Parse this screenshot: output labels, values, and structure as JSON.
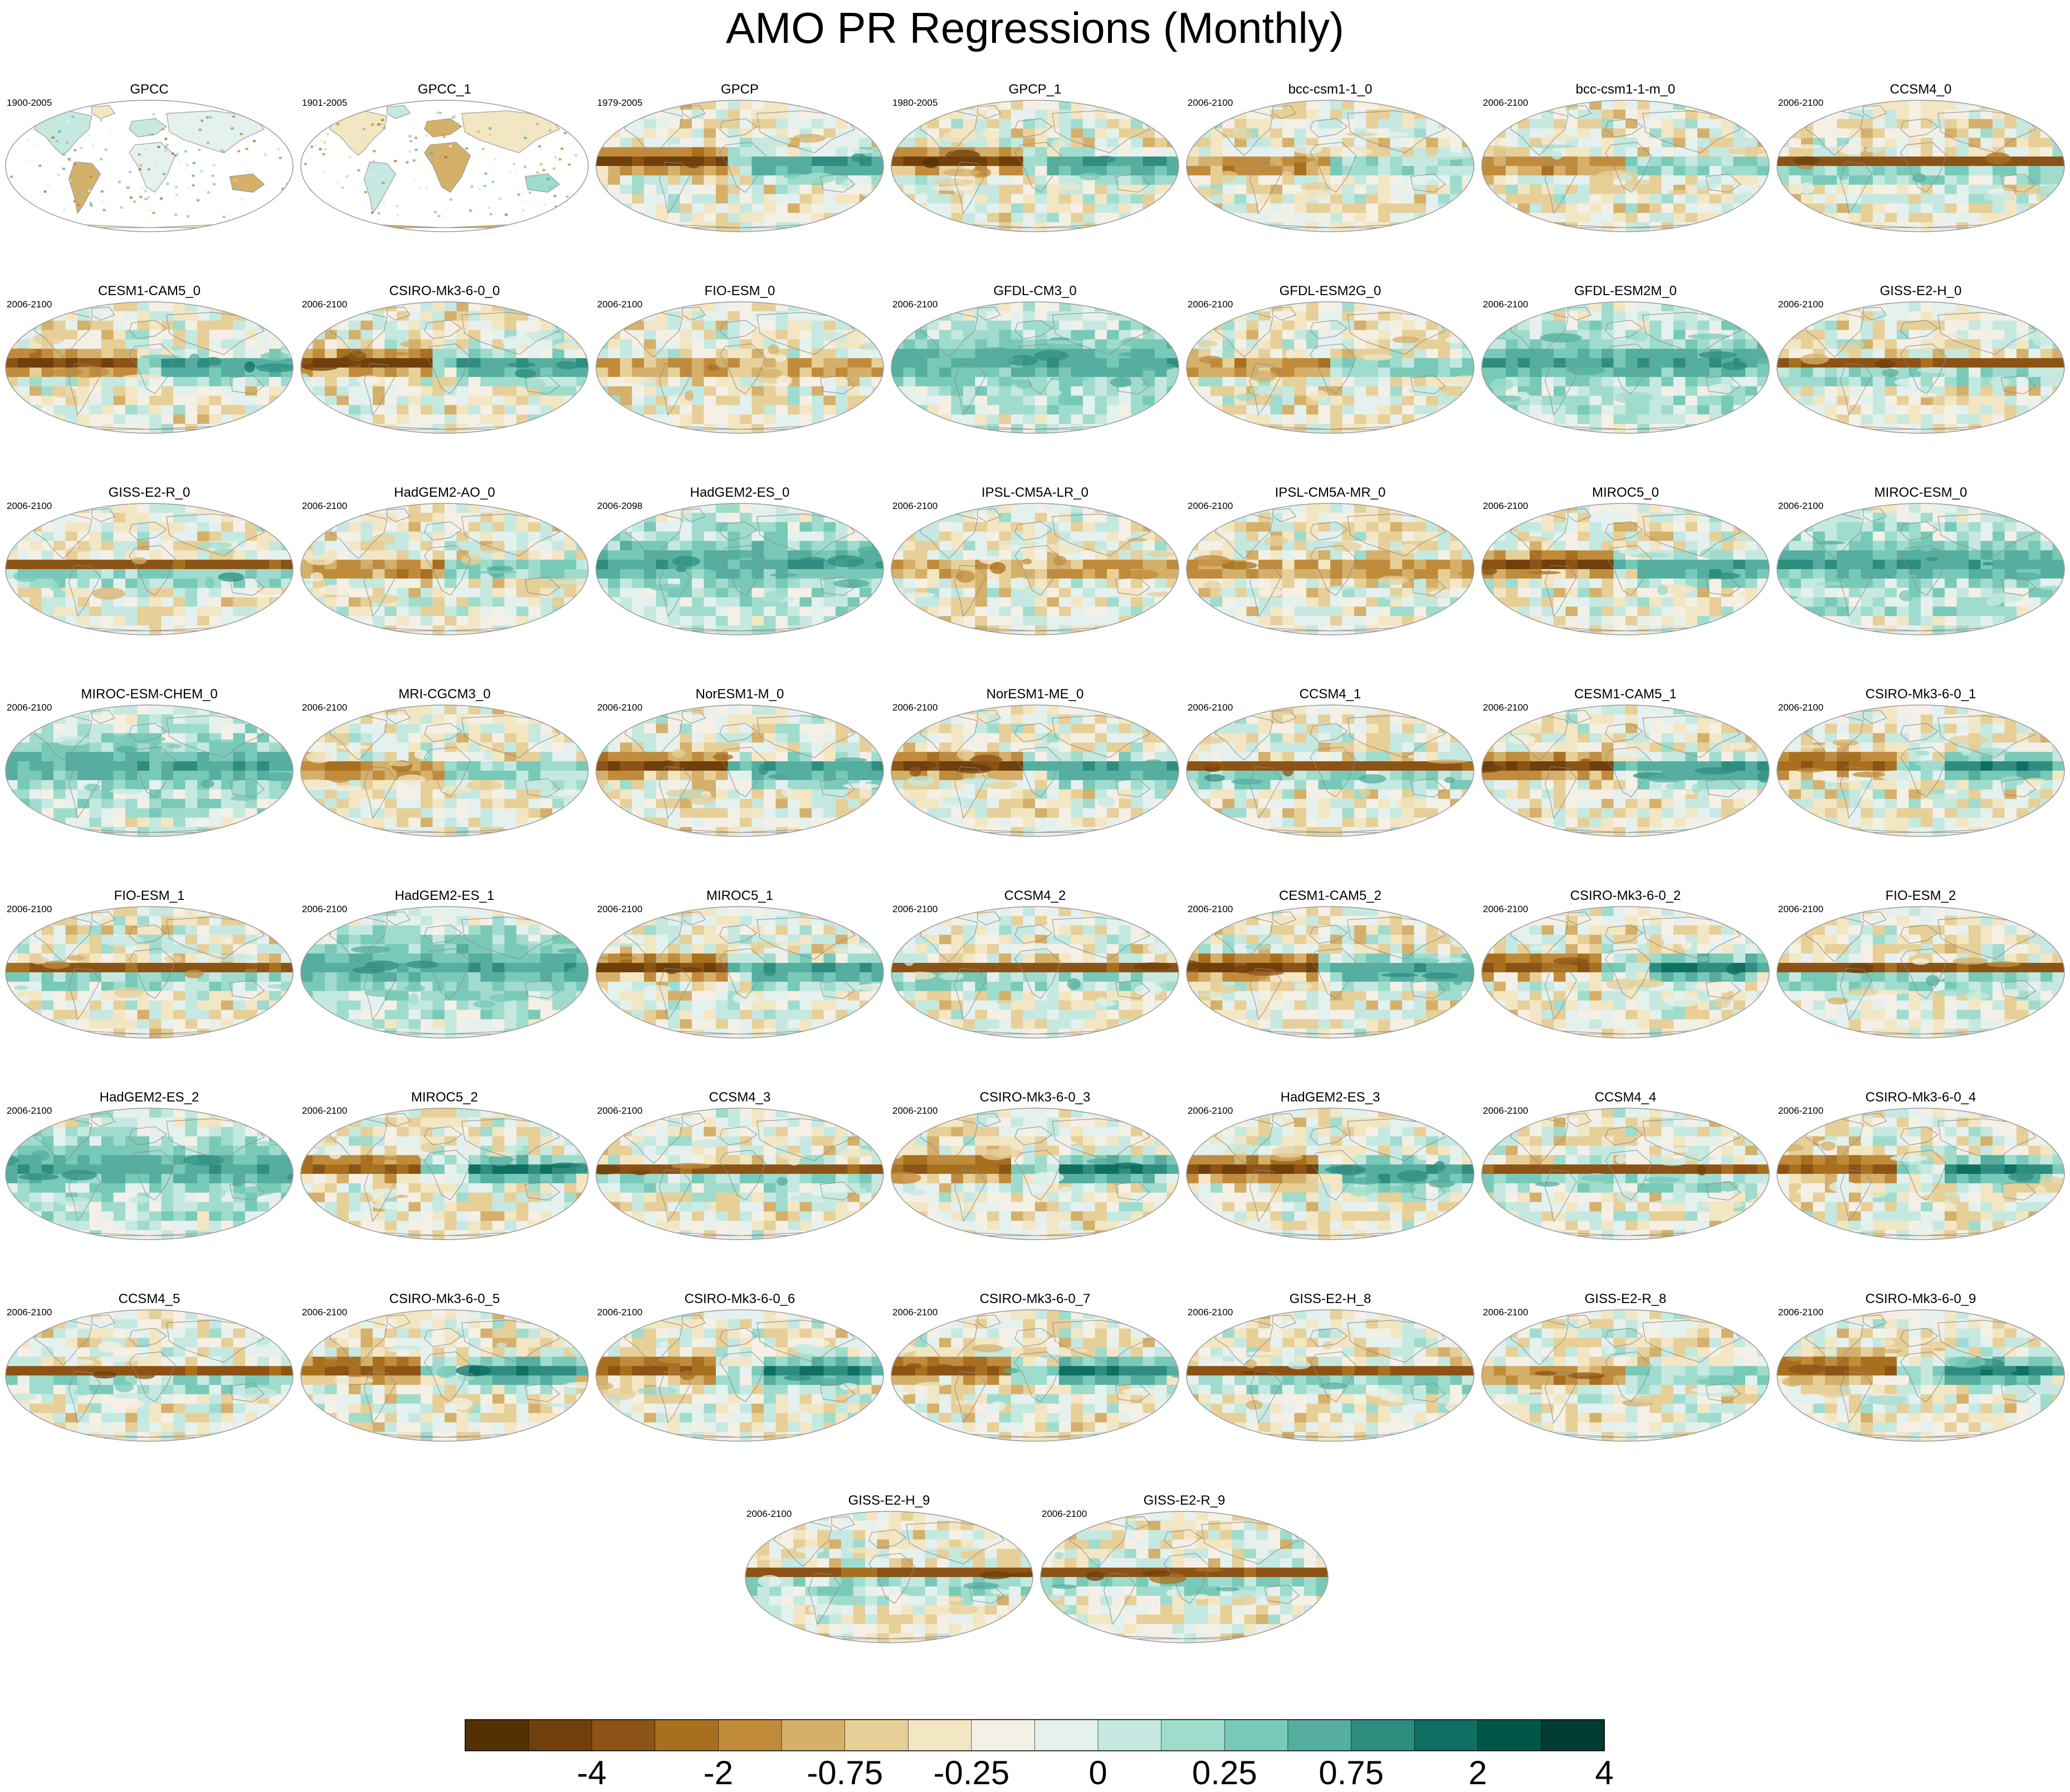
{
  "title": "AMO PR Regressions (Monthly)",
  "chart_data": {
    "type": "heatmap",
    "title": "AMO PR Regressions (Monthly)",
    "projection": "robinson global maps",
    "palette": "brown-to-teal diverging",
    "panels": [
      {
        "name": "GPCC",
        "period": "1900-2005",
        "coverage": "land",
        "pattern": "obs"
      },
      {
        "name": "GPCC_1",
        "period": "1901-2005",
        "coverage": "land",
        "pattern": "obs"
      },
      {
        "name": "GPCP",
        "period": "1979-2005",
        "coverage": "global",
        "pattern": "west"
      },
      {
        "name": "GPCP_1",
        "period": "1980-2005",
        "coverage": "global",
        "pattern": "west"
      },
      {
        "name": "bcc-csm1-1_0",
        "period": "2006-2100",
        "coverage": "global",
        "pattern": "mixed"
      },
      {
        "name": "bcc-csm1-1-m_0",
        "period": "2006-2100",
        "coverage": "global",
        "pattern": "mixed"
      },
      {
        "name": "CCSM4_0",
        "period": "2006-2100",
        "coverage": "global",
        "pattern": "band"
      },
      {
        "name": "CESM1-CAM5_0",
        "period": "2006-2100",
        "coverage": "global",
        "pattern": "west"
      },
      {
        "name": "CSIRO-Mk3-6-0_0",
        "period": "2006-2100",
        "coverage": "global",
        "pattern": "west"
      },
      {
        "name": "FIO-ESM_0",
        "period": "2006-2100",
        "coverage": "global",
        "pattern": "weak"
      },
      {
        "name": "GFDL-CM3_0",
        "period": "2006-2100",
        "coverage": "global",
        "pattern": "teal"
      },
      {
        "name": "GFDL-ESM2G_0",
        "period": "2006-2100",
        "coverage": "global",
        "pattern": "mixed"
      },
      {
        "name": "GFDL-ESM2M_0",
        "period": "2006-2100",
        "coverage": "global",
        "pattern": "teal"
      },
      {
        "name": "GISS-E2-H_0",
        "period": "2006-2100",
        "coverage": "global",
        "pattern": "band"
      },
      {
        "name": "GISS-E2-R_0",
        "period": "2006-2100",
        "coverage": "global",
        "pattern": "band"
      },
      {
        "name": "HadGEM2-AO_0",
        "period": "2006-2100",
        "coverage": "global",
        "pattern": "mixed"
      },
      {
        "name": "HadGEM2-ES_0",
        "period": "2006-2098",
        "coverage": "global",
        "pattern": "teal"
      },
      {
        "name": "IPSL-CM5A-LR_0",
        "period": "2006-2100",
        "coverage": "global",
        "pattern": "weak"
      },
      {
        "name": "IPSL-CM5A-MR_0",
        "period": "2006-2100",
        "coverage": "global",
        "pattern": "weak"
      },
      {
        "name": "MIROC5_0",
        "period": "2006-2100",
        "coverage": "global",
        "pattern": "west"
      },
      {
        "name": "MIROC-ESM_0",
        "period": "2006-2100",
        "coverage": "global",
        "pattern": "teal"
      },
      {
        "name": "MIROC-ESM-CHEM_0",
        "period": "2006-2100",
        "coverage": "global",
        "pattern": "teal"
      },
      {
        "name": "MRI-CGCM3_0",
        "period": "2006-2100",
        "coverage": "global",
        "pattern": "mixed"
      },
      {
        "name": "NorESM1-M_0",
        "period": "2006-2100",
        "coverage": "global",
        "pattern": "west"
      },
      {
        "name": "NorESM1-ME_0",
        "period": "2006-2100",
        "coverage": "global",
        "pattern": "west"
      },
      {
        "name": "CCSM4_1",
        "period": "2006-2100",
        "coverage": "global",
        "pattern": "band"
      },
      {
        "name": "CESM1-CAM5_1",
        "period": "2006-2100",
        "coverage": "global",
        "pattern": "west"
      },
      {
        "name": "CSIRO-Mk3-6-0_1",
        "period": "2006-2100",
        "coverage": "global",
        "pattern": "east"
      },
      {
        "name": "FIO-ESM_1",
        "period": "2006-2100",
        "coverage": "global",
        "pattern": "band"
      },
      {
        "name": "HadGEM2-ES_1",
        "period": "2006-2100",
        "coverage": "global",
        "pattern": "teal"
      },
      {
        "name": "MIROC5_1",
        "period": "2006-2100",
        "coverage": "global",
        "pattern": "west"
      },
      {
        "name": "CCSM4_2",
        "period": "2006-2100",
        "coverage": "global",
        "pattern": "band"
      },
      {
        "name": "CESM1-CAM5_2",
        "period": "2006-2100",
        "coverage": "global",
        "pattern": "west"
      },
      {
        "name": "CSIRO-Mk3-6-0_2",
        "period": "2006-2100",
        "coverage": "global",
        "pattern": "east"
      },
      {
        "name": "FIO-ESM_2",
        "period": "2006-2100",
        "coverage": "global",
        "pattern": "band"
      },
      {
        "name": "HadGEM2-ES_2",
        "period": "2006-2100",
        "coverage": "global",
        "pattern": "teal"
      },
      {
        "name": "MIROC5_2",
        "period": "2006-2100",
        "coverage": "global",
        "pattern": "east"
      },
      {
        "name": "CCSM4_3",
        "period": "2006-2100",
        "coverage": "global",
        "pattern": "band"
      },
      {
        "name": "CSIRO-Mk3-6-0_3",
        "period": "2006-2100",
        "coverage": "global",
        "pattern": "east"
      },
      {
        "name": "HadGEM2-ES_3",
        "period": "2006-2100",
        "coverage": "global",
        "pattern": "west"
      },
      {
        "name": "CCSM4_4",
        "period": "2006-2100",
        "coverage": "global",
        "pattern": "band"
      },
      {
        "name": "CSIRO-Mk3-6-0_4",
        "period": "2006-2100",
        "coverage": "global",
        "pattern": "east"
      },
      {
        "name": "CCSM4_5",
        "period": "2006-2100",
        "coverage": "global",
        "pattern": "band"
      },
      {
        "name": "CSIRO-Mk3-6-0_5",
        "period": "2006-2100",
        "coverage": "global",
        "pattern": "east"
      },
      {
        "name": "CSIRO-Mk3-6-0_6",
        "period": "2006-2100",
        "coverage": "global",
        "pattern": "east"
      },
      {
        "name": "CSIRO-Mk3-6-0_7",
        "period": "2006-2100",
        "coverage": "global",
        "pattern": "east"
      },
      {
        "name": "GISS-E2-H_8",
        "period": "2006-2100",
        "coverage": "global",
        "pattern": "band"
      },
      {
        "name": "GISS-E2-R_8",
        "period": "2006-2100",
        "coverage": "global",
        "pattern": "mixed"
      },
      {
        "name": "CSIRO-Mk3-6-0_9",
        "period": "2006-2100",
        "coverage": "global",
        "pattern": "east"
      },
      {
        "name": "GISS-E2-H_9",
        "period": "2006-2100",
        "coverage": "global",
        "pattern": "band"
      },
      {
        "name": "GISS-E2-R_9",
        "period": "2006-2100",
        "coverage": "global",
        "pattern": "band"
      }
    ],
    "colorbar": {
      "colors": [
        "#543005",
        "#6f3f0c",
        "#8c5316",
        "#a8701e",
        "#c08c3c",
        "#d4b06b",
        "#e7cf98",
        "#f3e6c3",
        "#f5f0e6",
        "#e4f1ee",
        "#c5e9e0",
        "#9fdccd",
        "#79c9b8",
        "#55ae9f",
        "#2f8d80",
        "#0f6f63",
        "#01564a",
        "#003c30"
      ],
      "tick_labels": [
        "-4",
        "-2",
        "-0.75",
        "-0.25",
        "0",
        "0.25",
        "0.75",
        "2",
        "4"
      ]
    }
  }
}
